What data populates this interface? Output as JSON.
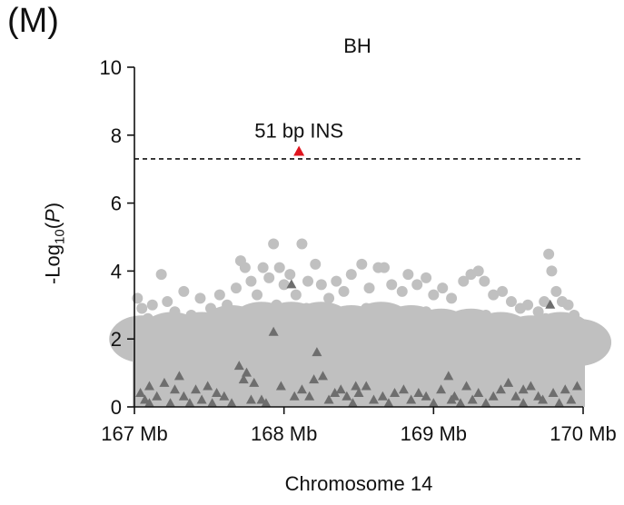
{
  "panel_label": "(M)",
  "chart_data": {
    "type": "scatter",
    "title": "BH",
    "xlabel": "Chromosome 14",
    "ylabel_prefix": "-Log",
    "ylabel_sub": "10",
    "ylabel_var": "P",
    "xlim": [
      167.0,
      170.0
    ],
    "ylim": [
      0,
      10
    ],
    "x_ticks": [
      167,
      168,
      169,
      170
    ],
    "x_tick_labels": [
      "167 Mb",
      "168 Mb",
      "169 Mb",
      "170 Mb"
    ],
    "y_ticks": [
      0,
      2,
      4,
      6,
      8,
      10
    ],
    "y_tick_labels": [
      "0",
      "2",
      "4",
      "6",
      "8",
      "10"
    ],
    "threshold": 7.3,
    "grid": false,
    "colors": {
      "snp": "#c0c0c0",
      "indel": "#6e6e6e",
      "highlight": "#e0141e",
      "threshold": "#111111"
    },
    "highlight": {
      "name": "51 bp INS",
      "x": 168.1,
      "y": 7.5
    },
    "snp_points": [
      [
        167.02,
        3.2
      ],
      [
        167.05,
        2.9
      ],
      [
        167.09,
        2.6
      ],
      [
        167.12,
        3.0
      ],
      [
        167.18,
        3.9
      ],
      [
        167.22,
        3.1
      ],
      [
        167.27,
        2.8
      ],
      [
        167.33,
        3.4
      ],
      [
        167.38,
        2.7
      ],
      [
        167.44,
        3.2
      ],
      [
        167.51,
        2.9
      ],
      [
        167.57,
        3.3
      ],
      [
        167.62,
        3.0
      ],
      [
        167.68,
        3.5
      ],
      [
        167.71,
        4.3
      ],
      [
        167.74,
        4.1
      ],
      [
        167.78,
        3.7
      ],
      [
        167.82,
        3.3
      ],
      [
        167.86,
        4.1
      ],
      [
        167.9,
        3.8
      ],
      [
        167.93,
        4.8
      ],
      [
        167.97,
        4.1
      ],
      [
        168.0,
        3.6
      ],
      [
        168.04,
        3.9
      ],
      [
        168.08,
        3.3
      ],
      [
        168.12,
        4.8
      ],
      [
        168.16,
        3.7
      ],
      [
        168.21,
        4.2
      ],
      [
        168.25,
        3.6
      ],
      [
        168.3,
        3.2
      ],
      [
        168.35,
        3.7
      ],
      [
        168.4,
        3.4
      ],
      [
        168.45,
        3.9
      ],
      [
        168.52,
        4.2
      ],
      [
        168.57,
        3.5
      ],
      [
        168.63,
        4.1
      ],
      [
        168.67,
        4.1
      ],
      [
        168.72,
        3.6
      ],
      [
        168.79,
        3.4
      ],
      [
        168.83,
        3.9
      ],
      [
        168.89,
        3.6
      ],
      [
        168.95,
        3.8
      ],
      [
        169.0,
        3.3
      ],
      [
        169.06,
        3.5
      ],
      [
        169.12,
        3.2
      ],
      [
        169.2,
        3.7
      ],
      [
        169.25,
        3.9
      ],
      [
        169.3,
        4.0
      ],
      [
        169.34,
        3.7
      ],
      [
        169.4,
        3.3
      ],
      [
        169.46,
        3.4
      ],
      [
        169.52,
        3.1
      ],
      [
        169.58,
        2.9
      ],
      [
        169.63,
        3.0
      ],
      [
        169.7,
        2.8
      ],
      [
        169.74,
        3.1
      ],
      [
        169.77,
        4.5
      ],
      [
        169.79,
        4.0
      ],
      [
        169.82,
        3.4
      ],
      [
        169.86,
        3.1
      ],
      [
        169.9,
        3.0
      ],
      [
        169.94,
        2.7
      ],
      [
        169.98,
        2.4
      ],
      [
        167.03,
        2.2
      ],
      [
        167.1,
        2.4
      ],
      [
        167.15,
        2.1
      ],
      [
        167.25,
        2.5
      ],
      [
        167.3,
        2.2
      ],
      [
        167.4,
        2.4
      ],
      [
        167.48,
        2.1
      ],
      [
        167.55,
        2.6
      ],
      [
        167.65,
        2.3
      ],
      [
        167.75,
        2.8
      ],
      [
        167.85,
        2.5
      ],
      [
        167.95,
        3.0
      ],
      [
        168.05,
        2.7
      ],
      [
        168.15,
        2.9
      ],
      [
        168.25,
        2.6
      ],
      [
        168.35,
        2.8
      ],
      [
        168.45,
        2.5
      ],
      [
        168.55,
        2.9
      ],
      [
        168.65,
        2.6
      ],
      [
        168.75,
        2.7
      ],
      [
        168.85,
        2.5
      ],
      [
        168.95,
        2.8
      ],
      [
        169.05,
        2.4
      ],
      [
        169.15,
        2.6
      ],
      [
        169.25,
        2.3
      ],
      [
        169.35,
        2.7
      ],
      [
        169.45,
        2.5
      ],
      [
        169.55,
        2.4
      ],
      [
        169.65,
        2.2
      ],
      [
        169.75,
        2.6
      ],
      [
        169.85,
        2.3
      ],
      [
        169.95,
        2.1
      ]
    ],
    "indel_points": [
      [
        167.04,
        0.4
      ],
      [
        167.07,
        0.2
      ],
      [
        167.1,
        0.6
      ],
      [
        167.15,
        0.3
      ],
      [
        167.2,
        0.7
      ],
      [
        167.24,
        0.1
      ],
      [
        167.27,
        0.5
      ],
      [
        167.3,
        0.9
      ],
      [
        167.33,
        0.3
      ],
      [
        167.37,
        0.1
      ],
      [
        167.41,
        0.5
      ],
      [
        167.45,
        0.2
      ],
      [
        167.49,
        0.6
      ],
      [
        167.55,
        0.4
      ],
      [
        167.6,
        0.3
      ],
      [
        167.65,
        0.1
      ],
      [
        167.7,
        1.2
      ],
      [
        167.73,
        0.8
      ],
      [
        167.75,
        1.0
      ],
      [
        167.78,
        0.2
      ],
      [
        167.8,
        0.7
      ],
      [
        167.85,
        0.2
      ],
      [
        167.88,
        0.1
      ],
      [
        167.93,
        2.2
      ],
      [
        167.98,
        0.6
      ],
      [
        168.05,
        3.6
      ],
      [
        168.07,
        0.3
      ],
      [
        168.12,
        0.5
      ],
      [
        168.17,
        0.3
      ],
      [
        168.2,
        0.8
      ],
      [
        168.22,
        1.6
      ],
      [
        168.26,
        0.9
      ],
      [
        168.3,
        0.2
      ],
      [
        168.34,
        0.4
      ],
      [
        168.38,
        0.5
      ],
      [
        168.42,
        0.3
      ],
      [
        168.46,
        0.1
      ],
      [
        168.5,
        0.4
      ],
      [
        168.55,
        0.6
      ],
      [
        168.6,
        0.2
      ],
      [
        168.66,
        0.3
      ],
      [
        168.7,
        0.1
      ],
      [
        168.74,
        0.4
      ],
      [
        168.8,
        0.5
      ],
      [
        168.85,
        0.2
      ],
      [
        168.9,
        0.4
      ],
      [
        168.95,
        0.3
      ],
      [
        169.0,
        0.1
      ],
      [
        169.05,
        0.5
      ],
      [
        169.1,
        0.9
      ],
      [
        169.14,
        0.3
      ],
      [
        169.18,
        0.1
      ],
      [
        169.22,
        0.6
      ],
      [
        169.26,
        0.2
      ],
      [
        169.3,
        0.4
      ],
      [
        169.35,
        0.1
      ],
      [
        169.4,
        0.3
      ],
      [
        169.45,
        0.5
      ],
      [
        169.5,
        0.7
      ],
      [
        169.55,
        0.3
      ],
      [
        169.6,
        0.1
      ],
      [
        169.65,
        0.6
      ],
      [
        169.7,
        0.3
      ],
      [
        169.73,
        0.2
      ],
      [
        169.78,
        3.0
      ],
      [
        169.8,
        0.4
      ],
      [
        169.84,
        0.1
      ],
      [
        169.88,
        0.5
      ],
      [
        169.92,
        0.2
      ],
      [
        169.96,
        0.6
      ],
      [
        169.12,
        0.2
      ],
      [
        168.48,
        0.6
      ],
      [
        167.52,
        0.1
      ],
      [
        169.6,
        0.5
      ],
      [
        167.1,
        0.1
      ]
    ]
  }
}
